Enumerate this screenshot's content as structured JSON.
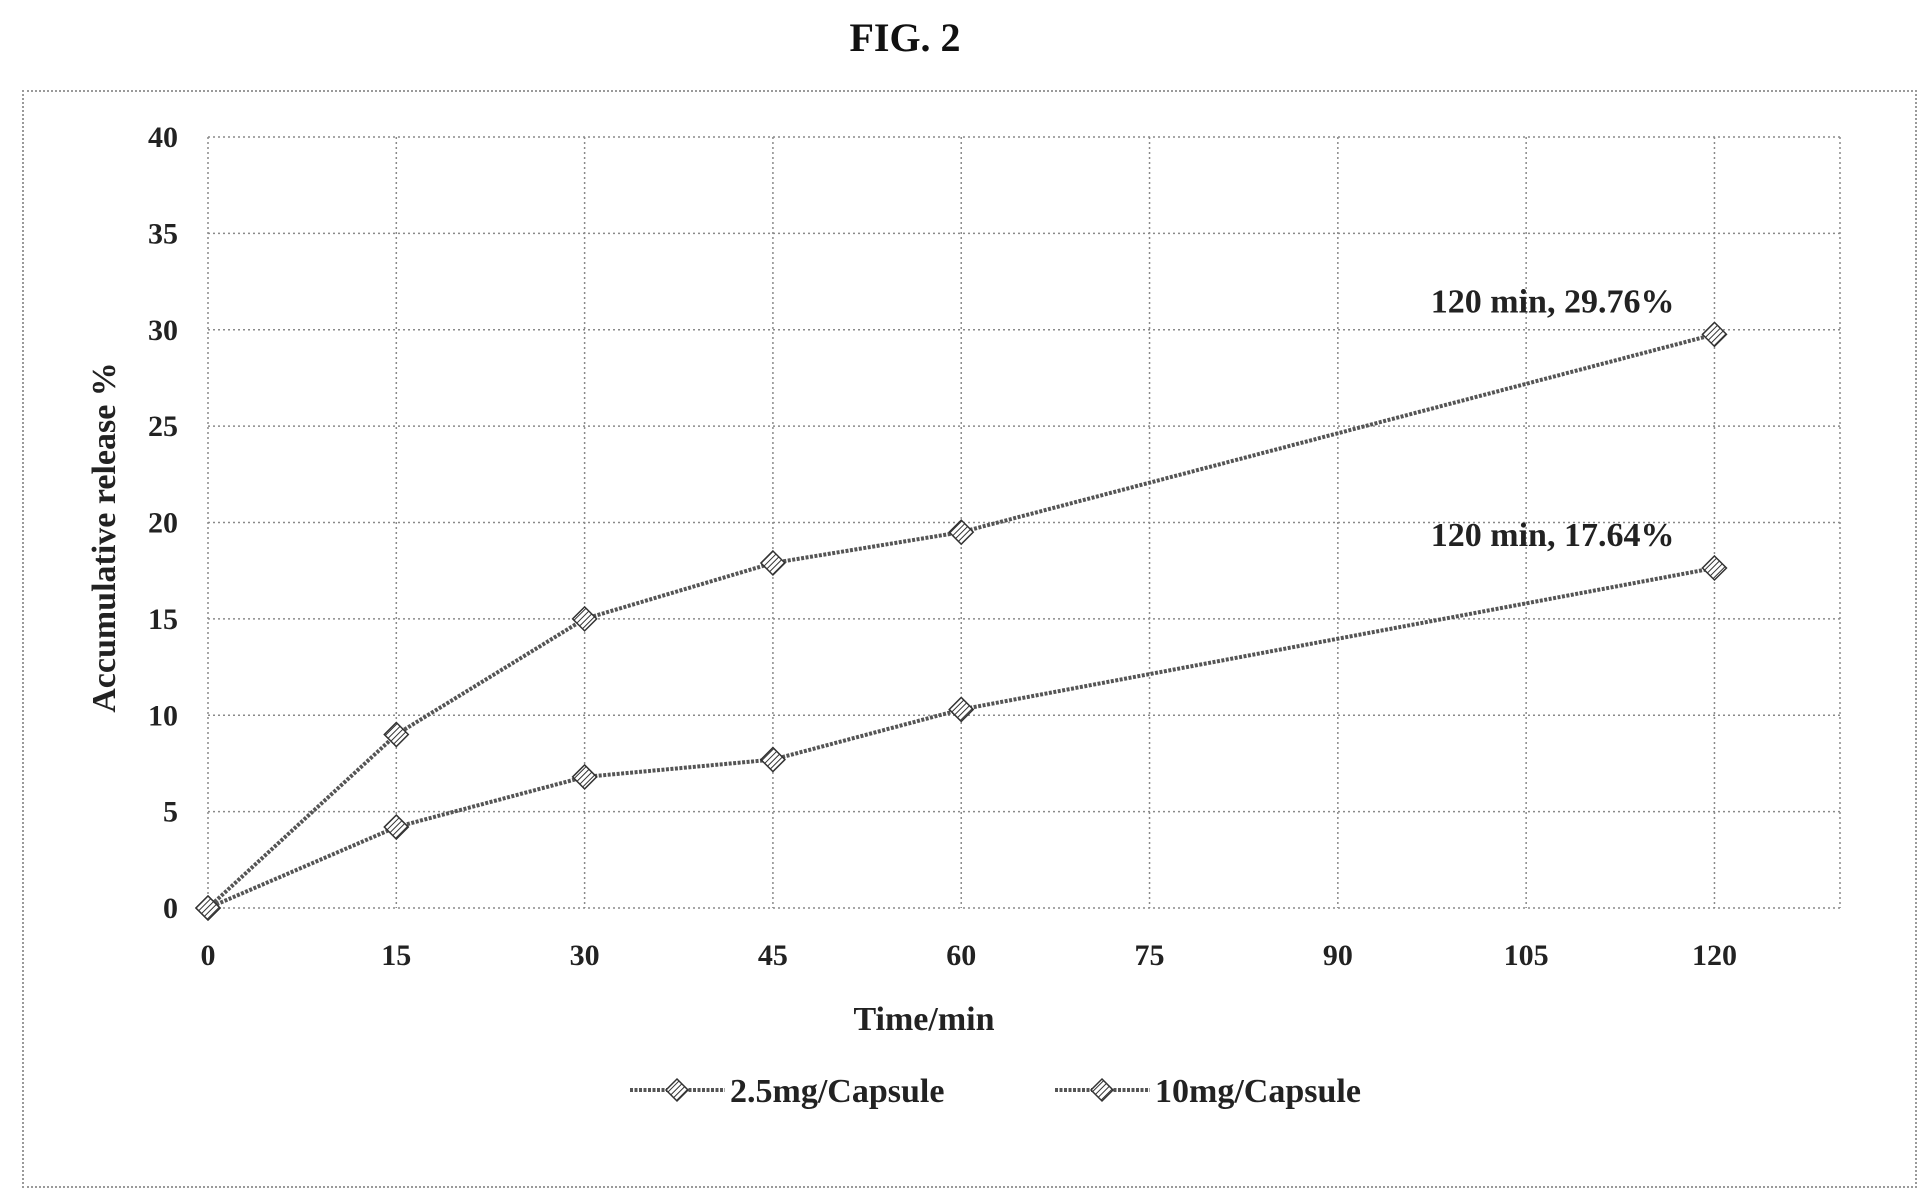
{
  "figure": {
    "title": "FIG. 2"
  },
  "chart_data": {
    "type": "line",
    "title": "",
    "xlabel": "Time/min",
    "ylabel": "Accumulative release %",
    "x_ticks": [
      0,
      15,
      30,
      45,
      60,
      75,
      90,
      105,
      120
    ],
    "y_ticks": [
      0,
      5,
      10,
      15,
      20,
      25,
      30,
      35,
      40
    ],
    "xlim": [
      0,
      130
    ],
    "ylim": [
      0,
      40
    ],
    "grid": true,
    "legend_position": "bottom",
    "series": [
      {
        "name": "2.5mg/Capsule",
        "x": [
          0,
          15,
          30,
          45,
          60,
          120
        ],
        "y": [
          0,
          4.2,
          6.8,
          7.7,
          10.3,
          17.64
        ],
        "color": "#555555"
      },
      {
        "name": "10mg/Capsule",
        "x": [
          0,
          15,
          30,
          45,
          60,
          120
        ],
        "y": [
          0,
          9,
          15,
          17.9,
          19.5,
          29.76
        ],
        "color": "#555555"
      }
    ],
    "annotations": [
      {
        "text": "120 min, 29.76%",
        "x": 120,
        "y": 29.76
      },
      {
        "text": "120 min, 17.64%",
        "x": 120,
        "y": 17.64
      }
    ]
  }
}
